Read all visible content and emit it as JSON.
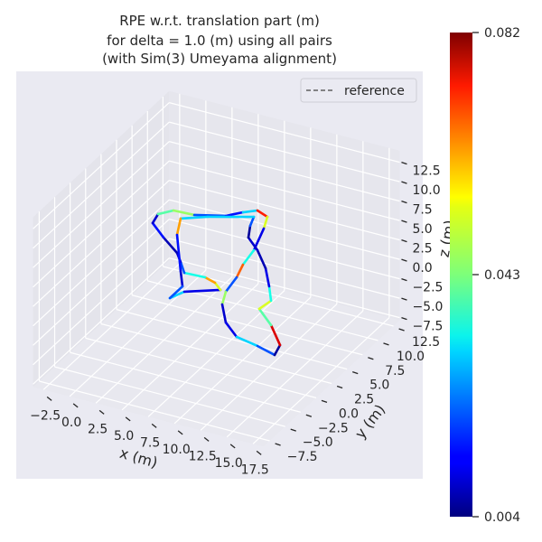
{
  "chart_data": {
    "type": "line3d",
    "title": [
      "RPE w.r.t. translation part (m)",
      "for delta = 1.0 (m) using all pairs",
      "(with Sim(3) Umeyama alignment)"
    ],
    "xlabel": "x (m)",
    "ylabel": "y (m)",
    "zlabel": "z (m)",
    "xlim": [
      -3.5,
      18.5
    ],
    "ylim": [
      -8.5,
      13.5
    ],
    "zlim": [
      -7.85,
      14
    ],
    "x_ticks": [
      "−2.5",
      "0.0",
      "2.5",
      "5.0",
      "7.5",
      "10.0",
      "12.5",
      "15.0",
      "17.5"
    ],
    "x_tick_values": [
      -2.5,
      0,
      2.5,
      5,
      7.5,
      10,
      12.5,
      15,
      17.5
    ],
    "y_ticks": [
      "−7.5",
      "−5.0",
      "−2.5",
      "0.0",
      "2.5",
      "5.0",
      "7.5",
      "10.0",
      "12.5"
    ],
    "y_tick_values": [
      -7.5,
      -5,
      -2.5,
      0,
      2.5,
      5,
      7.5,
      10,
      12.5
    ],
    "z_ticks": [
      "−7.5",
      "−5.0",
      "−2.5",
      "0.0",
      "2.5",
      "5.0",
      "7.5",
      "10.0",
      "12.5"
    ],
    "z_tick_values": [
      -7.5,
      -5,
      -2.5,
      0,
      2.5,
      5,
      7.5,
      10,
      12.5
    ],
    "grid": true,
    "legend": {
      "position": "top-right",
      "entries": [
        {
          "label": "reference",
          "style": "dashed",
          "color": "#5f5f5f"
        }
      ]
    },
    "colormap": "jet",
    "colorbar": {
      "min": 0.004,
      "max": 0.082,
      "ticks": [
        "0.004",
        "0.043",
        "0.082"
      ],
      "tick_values": [
        0.004,
        0.043,
        0.082
      ]
    },
    "trajectory": {
      "x": [
        3.06,
        4.44,
        7.89,
        7.37,
        6.42,
        4.44,
        4.09,
        3.75,
        2.46,
        1.42,
        1.94,
        3.41,
        5.39,
        8.4,
        10.04,
        11.42,
        12.37,
        12.03,
        11.08,
        10.04,
        9.44,
        8.4,
        8.06,
        8.4,
        9.44,
        11.42,
        13.06,
        13.58,
        12.72,
        11.59,
        12.72,
        12.54,
        12.2,
        11.42,
        10.56,
        10.73,
        11.08,
        6.68,
        4.09,
        3.75,
        4.09,
        4.27,
        3.06
      ],
      "y": [
        2.5,
        2.5,
        2.5,
        2.5,
        2.5,
        2.5,
        2.5,
        2.5,
        2.5,
        2.5,
        2.5,
        2.5,
        2.5,
        2.5,
        2.5,
        2.5,
        2.5,
        2.5,
        2.5,
        2.5,
        2.5,
        2.5,
        2.5,
        2.5,
        2.5,
        2.5,
        2.5,
        2.5,
        2.5,
        2.5,
        2.5,
        2.5,
        2.5,
        2.5,
        2.5,
        2.5,
        2.5,
        2.5,
        2.5,
        2.5,
        2.5,
        2.5,
        2.5
      ],
      "z": [
        -2.25,
        -0.95,
        0.49,
        1.23,
        1.6,
        1.49,
        2.77,
        3.81,
        5.34,
        6.84,
        8.17,
        9.15,
        9.27,
        10.2,
        11.23,
        11.95,
        11.46,
        9.84,
        6.71,
        4.49,
        2.65,
        0.43,
        -1.32,
        -3.52,
        -5.02,
        -5.49,
        -6.08,
        -4.63,
        -2.36,
        -0.66,
        0.78,
        2.57,
        4.78,
        6.84,
        8.16,
        9.73,
        11.01,
        9.48,
        8.35,
        6.13,
        1.6,
        -0.32,
        -2.25
      ],
      "error": [
        0.03,
        0.012,
        0.05,
        0.06,
        0.035,
        0.02,
        0.01,
        0.008,
        0.015,
        0.01,
        0.04,
        0.045,
        0.02,
        0.015,
        0.03,
        0.07,
        0.05,
        0.012,
        0.035,
        0.065,
        0.02,
        0.045,
        0.01,
        0.012,
        0.03,
        0.02,
        0.006,
        0.075,
        0.04,
        0.05,
        0.035,
        0.012,
        0.008,
        0.01,
        0.006,
        0.02,
        0.03,
        0.03,
        0.06,
        0.015,
        0.01,
        0.02,
        0.03
      ]
    }
  }
}
